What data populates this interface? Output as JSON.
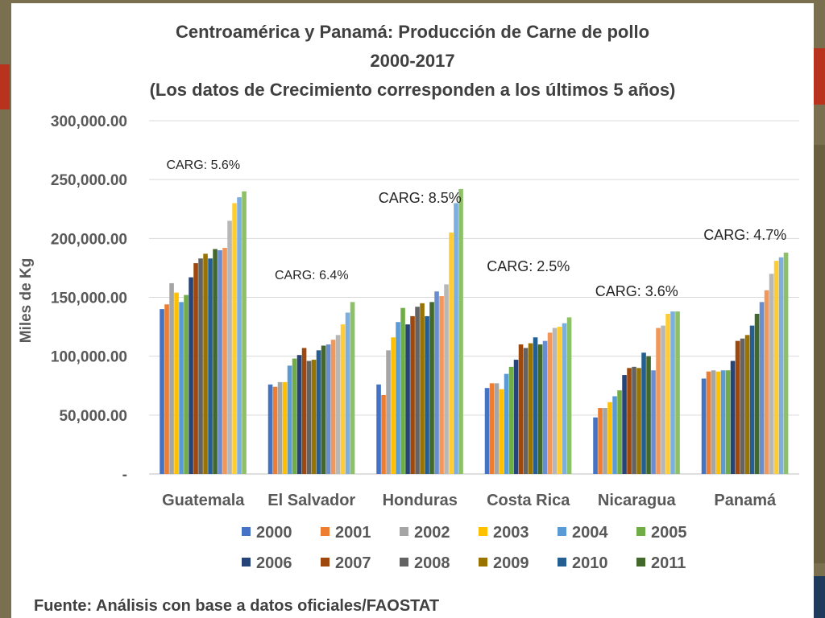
{
  "chart_data": {
    "type": "bar",
    "title": "Centroamérica y Panamá:  Producción de Carne de pollo",
    "subtitle": "2000-2017",
    "subtitle2": "(Los datos de Crecimiento corresponden a los últimos 5 años)",
    "xlabel": "",
    "ylabel": "Miles de Kg",
    "ylim": [
      0,
      300000
    ],
    "yticks": [
      {
        "value": 0,
        "label": "-"
      },
      {
        "value": 50000,
        "label": "50,000.00"
      },
      {
        "value": 100000,
        "label": "100,000.00"
      },
      {
        "value": 150000,
        "label": "150,000.00"
      },
      {
        "value": 200000,
        "label": "200,000.00"
      },
      {
        "value": 250000,
        "label": "250,000.00"
      },
      {
        "value": 300000,
        "label": "300,000.00"
      }
    ],
    "grid": true,
    "legend_position": "bottom",
    "categories": [
      "Guatemala",
      "El Salvador",
      "Honduras",
      "Costa Rica",
      "Nicaragua",
      "Panamá"
    ],
    "series": [
      {
        "name": "2000",
        "color": "#4472c4",
        "values": [
          140000,
          76000,
          76000,
          73000,
          48000,
          81000
        ]
      },
      {
        "name": "2001",
        "color": "#ed7d31",
        "values": [
          144000,
          74000,
          67000,
          77000,
          56000,
          87000
        ]
      },
      {
        "name": "2002",
        "color": "#a5a5a5",
        "values": [
          162000,
          78000,
          105000,
          77000,
          56000,
          88000
        ]
      },
      {
        "name": "2003",
        "color": "#ffc000",
        "values": [
          154000,
          78000,
          116000,
          72000,
          61000,
          87000
        ]
      },
      {
        "name": "2004",
        "color": "#5b9bd5",
        "values": [
          146000,
          92000,
          129000,
          85000,
          66000,
          88000
        ]
      },
      {
        "name": "2005",
        "color": "#70ad47",
        "values": [
          152000,
          98000,
          141000,
          91000,
          71000,
          88000
        ]
      },
      {
        "name": "2006",
        "color": "#264478",
        "values": [
          167000,
          101000,
          127000,
          97000,
          84000,
          96000
        ]
      },
      {
        "name": "2007",
        "color": "#9e480e",
        "values": [
          179000,
          107000,
          134000,
          110000,
          90000,
          113000
        ]
      },
      {
        "name": "2008",
        "color": "#636363",
        "values": [
          183000,
          96000,
          142000,
          107000,
          91000,
          115000
        ]
      },
      {
        "name": "2009",
        "color": "#997300",
        "values": [
          187000,
          97000,
          145000,
          111000,
          90000,
          118000
        ]
      },
      {
        "name": "2010",
        "color": "#255e91",
        "values": [
          183000,
          105000,
          134000,
          116000,
          103000,
          126000
        ]
      },
      {
        "name": "2011",
        "color": "#43682b",
        "values": [
          191000,
          109000,
          146000,
          110000,
          100000,
          136000
        ]
      },
      {
        "name": "",
        "color": "#698ed0",
        "values": [
          190000,
          110000,
          155000,
          113000,
          88000,
          146000
        ]
      },
      {
        "name": "",
        "color": "#f1975a",
        "values": [
          192000,
          114000,
          151000,
          120000,
          124000,
          156000
        ]
      },
      {
        "name": "",
        "color": "#b7b7b7",
        "values": [
          215000,
          118000,
          161000,
          124000,
          126000,
          170000
        ]
      },
      {
        "name": "",
        "color": "#ffcd33",
        "values": [
          230000,
          127000,
          205000,
          125000,
          136000,
          181000
        ]
      },
      {
        "name": "",
        "color": "#7cafdd",
        "values": [
          235000,
          137000,
          230000,
          128000,
          138000,
          184000
        ]
      },
      {
        "name": "",
        "color": "#8cc168",
        "values": [
          240000,
          146000,
          242000,
          133000,
          138000,
          188000
        ]
      }
    ],
    "annotations": [
      {
        "text": "CARG: 5.6%",
        "category": "Guatemala"
      },
      {
        "text": "CARG: 6.4%",
        "category": "El Salvador"
      },
      {
        "text": "CARG: 8.5%",
        "category": "Honduras"
      },
      {
        "text": "CARG: 2.5%",
        "category": "Costa Rica"
      },
      {
        "text": "CARG: 3.6%",
        "category": "Nicaragua"
      },
      {
        "text": "CARG: 4.7%",
        "category": "Panamá"
      }
    ]
  },
  "footer": {
    "source": "Fuente: Análisis con base a datos oficiales/FAOSTAT"
  }
}
